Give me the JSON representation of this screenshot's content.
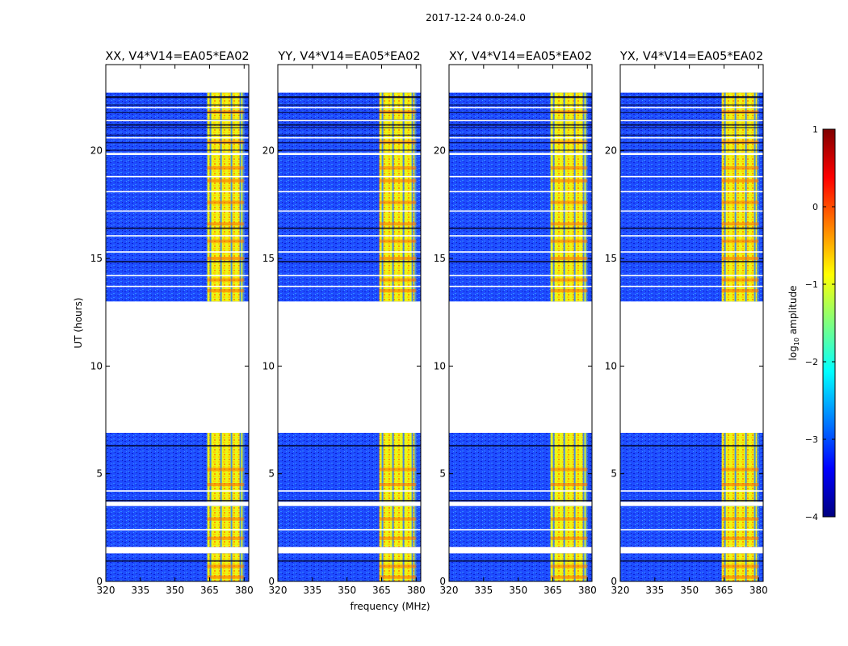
{
  "chart_data": {
    "type": "heatmap",
    "suptitle": "2017-12-24 0.0-24.0",
    "xlabel": "frequency (MHz)",
    "ylabel": "UT (hours)",
    "xlim": [
      320,
      382
    ],
    "ylim": [
      0,
      24
    ],
    "xticks": [
      "320",
      "335",
      "350",
      "365",
      "380"
    ],
    "yticks": [
      "0",
      "5",
      "10",
      "15",
      "20"
    ],
    "panels": [
      {
        "title": "XX, V4*V14=EA05*EA02"
      },
      {
        "title": "YY, V4*V14=EA05*EA02"
      },
      {
        "title": "XY, V4*V14=EA05*EA02"
      },
      {
        "title": "YX, V4*V14=EA05*EA02"
      }
    ],
    "data_blocks_hours": [
      [
        0,
        1.3
      ],
      [
        1.6,
        3.5
      ],
      [
        3.7,
        6.9
      ],
      [
        13.0,
        19.8
      ],
      [
        19.9,
        22.7
      ]
    ],
    "signal_band_mhz": [
      364,
      380
    ],
    "colorbar": {
      "label": "log10 amplitude",
      "range": [
        -4,
        1
      ],
      "ticks": [
        "1",
        "0",
        "−1",
        "−2",
        "−3",
        "−4"
      ]
    }
  }
}
